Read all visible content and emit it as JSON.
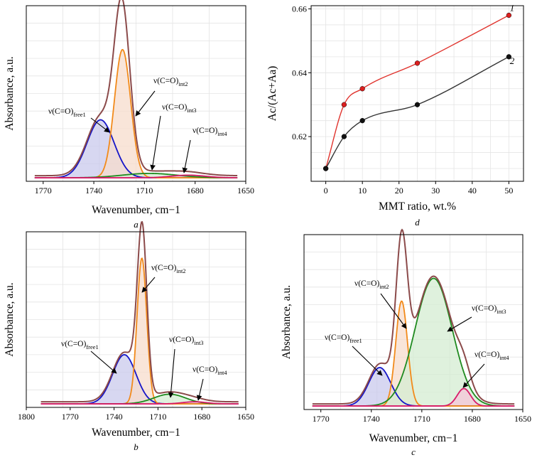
{
  "chart_data": [
    {
      "panel": "a",
      "type": "line",
      "caption": "a",
      "xlabel": "Wavenumber, cm−1",
      "ylabel": "Absorbance, a.u.",
      "xlim": [
        1780,
        1650
      ],
      "ylim": [
        0,
        1.0
      ],
      "xticks": [
        1770,
        1740,
        1710,
        1680,
        1650
      ],
      "x_range": [
        1775,
        1655
      ],
      "baseline": 0.02,
      "bands": [
        {
          "name": "free1",
          "label": "ν(C=O)",
          "sub": "free1",
          "center": 1736,
          "height": 0.33,
          "width": 8,
          "color": "#1515c8",
          "fill": "#c9c9ec"
        },
        {
          "name": "int2",
          "label": "ν(C=O)",
          "sub": "int2",
          "center": 1723,
          "height": 0.73,
          "width": 4.8,
          "color": "#f28a1a",
          "fill": "#f7dccc"
        },
        {
          "name": "int3",
          "label": "ν(C=O)",
          "sub": "int3",
          "center": 1707,
          "height": 0.025,
          "width": 16,
          "color": "#1f8a1f",
          "fill": "#d4ecd2"
        },
        {
          "name": "int4",
          "label": "ν(C=O)",
          "sub": "int4",
          "center": 1684,
          "height": 0.015,
          "width": 10,
          "color": "#d81b6a",
          "fill": "#f6c6d8"
        }
      ],
      "envelope": {
        "color": "#8b4a4a",
        "extra_peak": {
          "center": 1724,
          "height": 0.18,
          "width": 4
        }
      }
    },
    {
      "panel": "b",
      "type": "line",
      "caption": "b",
      "xlabel": "Wavenumber, cm−1",
      "ylabel": "Absorbance, a.u.",
      "xlim": [
        1800,
        1650
      ],
      "ylim": [
        0,
        1.0
      ],
      "xticks": [
        1800,
        1770,
        1740,
        1710,
        1680,
        1650
      ],
      "x_range": [
        1790,
        1655
      ],
      "baseline": 0.02,
      "bands": [
        {
          "name": "free1",
          "label": "ν(C=O)",
          "sub": "free1",
          "center": 1733,
          "height": 0.28,
          "width": 8,
          "color": "#1515c8",
          "fill": "#c9c9ec"
        },
        {
          "name": "int2",
          "label": "ν(C=O)",
          "sub": "int2",
          "center": 1721,
          "height": 0.83,
          "width": 3.3,
          "color": "#f28a1a",
          "fill": "#f7dccc"
        },
        {
          "name": "int3",
          "label": "ν(C=O)",
          "sub": "int3",
          "center": 1702,
          "height": 0.055,
          "width": 11,
          "color": "#1f8a1f",
          "fill": "#d4ecd2"
        },
        {
          "name": "int4",
          "label": "ν(C=O)",
          "sub": "int4",
          "center": 1685,
          "height": 0.012,
          "width": 8,
          "color": "#d81b6a",
          "fill": "#f6c6d8"
        }
      ],
      "envelope": {
        "color": "#8b4a4a",
        "extra_peak": {
          "center": 1720,
          "height": 0.1,
          "width": 2.5
        }
      }
    },
    {
      "panel": "c",
      "type": "line",
      "caption": "c",
      "xlabel": "Wavenumber, cm−1",
      "ylabel": "Absorbance, a.u.",
      "xlim": [
        1780,
        1650
      ],
      "ylim": [
        0,
        1.0
      ],
      "xticks": [
        1770,
        1740,
        1710,
        1680,
        1650
      ],
      "x_range": [
        1775,
        1655
      ],
      "baseline": 0.02,
      "bands": [
        {
          "name": "free1",
          "label": "ν(C=O)",
          "sub": "free1",
          "center": 1735,
          "height": 0.22,
          "width": 6.5,
          "color": "#1515c8",
          "fill": "#c9c9ec"
        },
        {
          "name": "int2",
          "label": "ν(C=O)",
          "sub": "int2",
          "center": 1722,
          "height": 0.6,
          "width": 3.5,
          "color": "#f28a1a",
          "fill": "#f7dccc"
        },
        {
          "name": "int3",
          "label": "ν(C=O)",
          "sub": "int3",
          "center": 1703,
          "height": 0.73,
          "width": 11,
          "color": "#1f8a1f",
          "fill": "#d4ecd2"
        },
        {
          "name": "int4",
          "label": "ν(C=O)",
          "sub": "int4",
          "center": 1685,
          "height": 0.1,
          "width": 4,
          "color": "#d81b6a",
          "fill": "#f6c6d8"
        }
      ],
      "envelope": {
        "color": "#8b4a4a",
        "extra_peak": {
          "center": 1722,
          "height": 0.2,
          "width": 3
        }
      }
    },
    {
      "panel": "d",
      "type": "scatter",
      "caption": "d",
      "xlabel": "MMT ratio, wt.%",
      "ylabel": "Ac/(Ac+Aa)",
      "xlim": [
        -4,
        54
      ],
      "ylim": [
        0.606,
        0.661
      ],
      "xticks": [
        0,
        10,
        20,
        30,
        40,
        50
      ],
      "yticks": [
        0.62,
        0.64,
        0.66
      ],
      "series": [
        {
          "name": "1",
          "x": [
            0,
            5,
            10,
            25,
            50
          ],
          "y": [
            0.61,
            0.63,
            0.635,
            0.643,
            0.658
          ],
          "color": "#e0342e",
          "marker": "#dd1f1f"
        },
        {
          "name": "2",
          "x": [
            0,
            5,
            10,
            25,
            50
          ],
          "y": [
            0.61,
            0.62,
            0.625,
            0.63,
            0.645
          ],
          "color": "#333333",
          "marker": "#111111"
        }
      ]
    }
  ],
  "labels": {
    "nu": "ν(C=O)"
  }
}
